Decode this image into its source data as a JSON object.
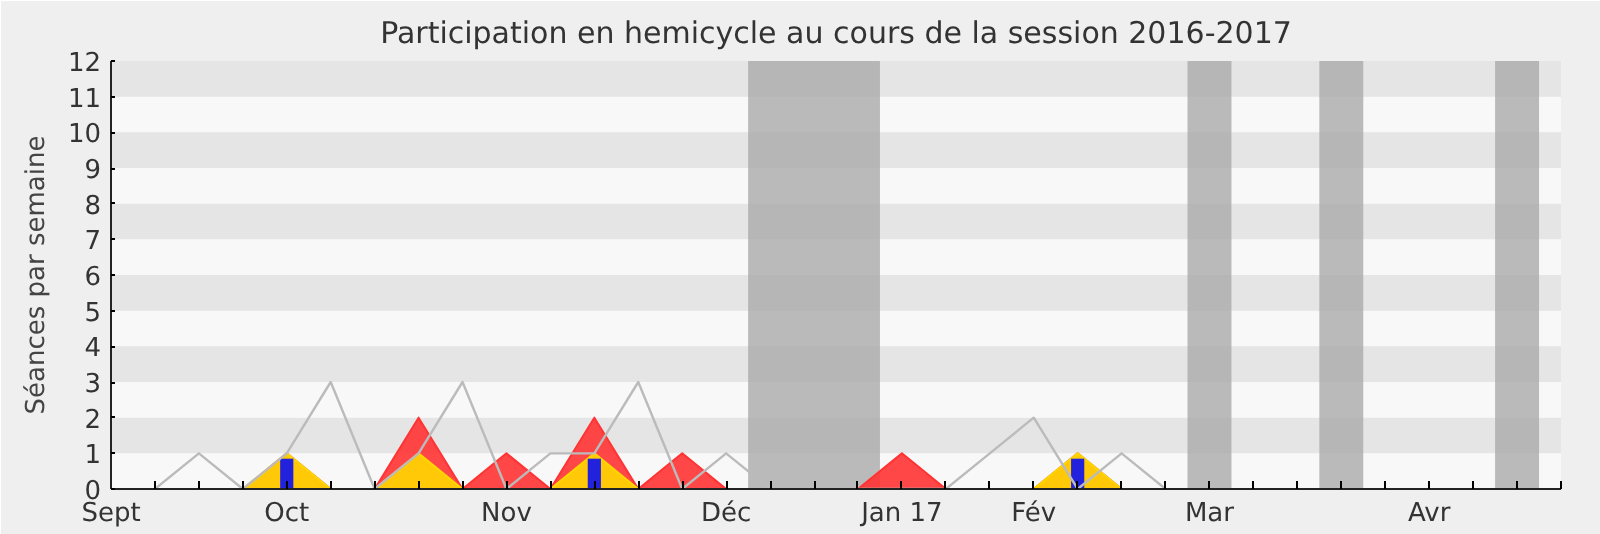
{
  "chart_data": {
    "type": "area",
    "title": "Participation en hemicycle au cours de la session 2016-2017",
    "ylabel": "Séances par semaine",
    "xlim": [
      "2016-09-07",
      "2017-04-26"
    ],
    "ylim": [
      0,
      12
    ],
    "xticks": [
      {
        "value": "2016-09-07",
        "label": "Sept"
      },
      {
        "value": "2016-09-14",
        "label": null
      },
      {
        "value": "2016-09-21",
        "label": null
      },
      {
        "value": "2016-09-28",
        "label": null
      },
      {
        "value": "2016-10-05",
        "label": "Oct"
      },
      {
        "value": "2016-10-12",
        "label": null
      },
      {
        "value": "2016-10-19",
        "label": null
      },
      {
        "value": "2016-10-26",
        "label": null
      },
      {
        "value": "2016-11-02",
        "label": null
      },
      {
        "value": "2016-11-09",
        "label": "Nov"
      },
      {
        "value": "2016-11-16",
        "label": null
      },
      {
        "value": "2016-11-23",
        "label": null
      },
      {
        "value": "2016-11-30",
        "label": null
      },
      {
        "value": "2016-12-07",
        "label": null
      },
      {
        "value": "2016-12-14",
        "label": "Déc"
      },
      {
        "value": "2016-12-21",
        "label": null
      },
      {
        "value": "2016-12-28",
        "label": null
      },
      {
        "value": "2017-01-04",
        "label": null
      },
      {
        "value": "2017-01-11",
        "label": "Jan 17"
      },
      {
        "value": "2017-01-18",
        "label": null
      },
      {
        "value": "2017-01-25",
        "label": null
      },
      {
        "value": "2017-02-01",
        "label": "Fév"
      },
      {
        "value": "2017-02-08",
        "label": null
      },
      {
        "value": "2017-02-15",
        "label": null
      },
      {
        "value": "2017-02-22",
        "label": null
      },
      {
        "value": "2017-03-01",
        "label": "Mar"
      },
      {
        "value": "2017-03-08",
        "label": null
      },
      {
        "value": "2017-03-15",
        "label": null
      },
      {
        "value": "2017-03-22",
        "label": null
      },
      {
        "value": "2017-03-29",
        "label": null
      },
      {
        "value": "2017-04-05",
        "label": "Avr"
      },
      {
        "value": "2017-04-12",
        "label": null
      },
      {
        "value": "2017-04-19",
        "label": null
      },
      {
        "value": "2017-04-26",
        "label": null
      }
    ],
    "yticks": [
      0,
      1,
      2,
      3,
      4,
      5,
      6,
      7,
      8,
      9,
      10,
      11,
      12
    ],
    "bands": [
      {
        "axis": "x",
        "from": "2016-12-17T12:00",
        "to": "2017-01-07T12:00",
        "color": "#aaaaaa"
      },
      {
        "axis": "x",
        "from": "2017-02-25T12:00",
        "to": "2017-03-04T12:00",
        "color": "#aaaaaa"
      },
      {
        "axis": "x",
        "from": "2017-03-18T12:00",
        "to": "2017-03-25T12:00",
        "color": "#aaaaaa"
      },
      {
        "axis": "x",
        "from": "2017-04-15T12:00",
        "to": "2017-04-22T12:00",
        "color": "#aaaaaa"
      }
    ],
    "series": [
      {
        "color": "#ff3333",
        "x": [
          "2016-09-07",
          "2016-09-14",
          "2016-09-21",
          "2016-09-28",
          "2016-10-05",
          "2016-10-12",
          "2016-10-19",
          "2016-10-26",
          "2016-11-02",
          "2016-11-09",
          "2016-11-16",
          "2016-11-23",
          "2016-11-30",
          "2016-12-07",
          "2016-12-14",
          "2017-01-04",
          "2017-01-11",
          "2017-01-18",
          "2017-01-25",
          "2017-02-01",
          "2017-02-08",
          "2017-02-15",
          "2017-02-22"
        ],
        "values": [
          0,
          0,
          0,
          0,
          1,
          0,
          0,
          2,
          0,
          1,
          0,
          2,
          0,
          1,
          0,
          0,
          1,
          0,
          0,
          0,
          1,
          0,
          0
        ]
      },
      {
        "color": "#ffd700",
        "x": [
          "2016-09-07",
          "2016-09-14",
          "2016-09-21",
          "2016-09-28",
          "2016-10-05",
          "2016-10-12",
          "2016-10-19",
          "2016-10-26",
          "2016-11-02",
          "2016-11-09",
          "2016-11-16",
          "2016-11-23",
          "2016-11-30",
          "2016-12-07",
          "2016-12-14",
          "2017-01-04",
          "2017-01-11",
          "2017-01-18",
          "2017-01-25",
          "2017-02-01",
          "2017-02-08",
          "2017-02-15",
          "2017-02-22"
        ],
        "values": [
          0,
          0,
          0,
          0,
          1,
          0,
          0,
          1,
          0,
          0,
          0,
          1,
          0,
          0,
          0,
          0,
          0,
          0,
          0,
          0,
          1,
          0,
          0
        ]
      },
      {
        "type": "bar",
        "color": "#2222dd",
        "x": [
          "2016-10-05",
          "2016-11-23",
          "2017-02-08"
        ],
        "values": [
          0.85,
          0.85,
          0.85
        ]
      },
      {
        "type": "line",
        "color": "#bbbbbb",
        "x": [
          "2016-09-14",
          "2016-09-21",
          "2016-09-28",
          "2016-10-05",
          "2016-10-12",
          "2016-10-19",
          "2016-10-26",
          "2016-11-02",
          "2016-11-09",
          "2016-11-16",
          "2016-11-23",
          "2016-11-30",
          "2016-12-07",
          "2016-12-14",
          "2016-12-21",
          "2017-01-11",
          "2017-01-18",
          "2017-01-25",
          "2017-02-01",
          "2017-02-08",
          "2017-02-15",
          "2017-02-22"
        ],
        "values": [
          0,
          1,
          0,
          1,
          3,
          0,
          1,
          3,
          0,
          1,
          1,
          3,
          0,
          1,
          0,
          0,
          0,
          1,
          2,
          0,
          1,
          0
        ]
      }
    ]
  }
}
